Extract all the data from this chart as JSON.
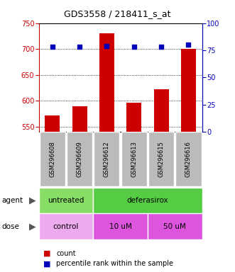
{
  "title": "GDS3558 / 218411_s_at",
  "samples": [
    "GSM296608",
    "GSM296609",
    "GSM296612",
    "GSM296613",
    "GSM296615",
    "GSM296616"
  ],
  "counts": [
    572,
    590,
    730,
    597,
    622,
    700
  ],
  "percentile_ranks": [
    78,
    78,
    79,
    78,
    78,
    80
  ],
  "ylim_left": [
    540,
    750
  ],
  "ylim_right": [
    0,
    100
  ],
  "yticks_left": [
    550,
    600,
    650,
    700,
    750
  ],
  "yticks_right": [
    0,
    25,
    50,
    75,
    100
  ],
  "bar_color": "#CC0000",
  "dot_color": "#0000BB",
  "bar_width": 0.55,
  "agent_groups": [
    {
      "label": "untreated",
      "start": 0,
      "end": 2,
      "color": "#88DD66"
    },
    {
      "label": "deferasirox",
      "start": 2,
      "end": 6,
      "color": "#55CC44"
    }
  ],
  "dose_groups": [
    {
      "label": "control",
      "start": 0,
      "end": 2,
      "color": "#EEAAEE"
    },
    {
      "label": "10 uM",
      "start": 2,
      "end": 4,
      "color": "#DD55DD"
    },
    {
      "label": "50 uM",
      "start": 4,
      "end": 6,
      "color": "#DD55DD"
    }
  ],
  "legend_count_color": "#CC0000",
  "legend_percentile_color": "#0000BB",
  "grid_color": "#000000",
  "tick_color_left": "#CC0000",
  "tick_color_right": "#0000BB",
  "plot_bg_color": "#FFFFFF",
  "xtick_bg_color": "#BBBBBB"
}
